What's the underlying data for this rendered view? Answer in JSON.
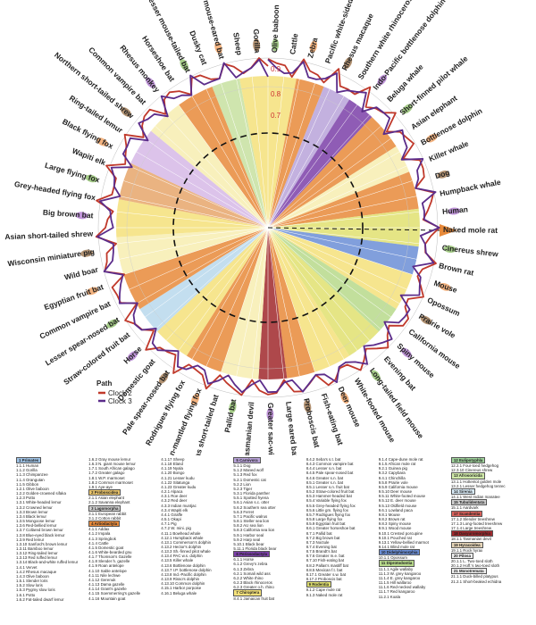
{
  "radial_labels": [
    "0.9",
    "0.8",
    "0.7"
  ],
  "legend": {
    "title": "Path",
    "items": [
      {
        "label": "Clock 2",
        "color": "#c0392b"
      },
      {
        "label": "Clock 3",
        "color": "#5b2c8a"
      }
    ]
  },
  "species_labels": [
    "Olive baboon",
    "Cattle",
    "Zebra",
    "Pacific white-sided dolphin",
    "Rhesus macaque",
    "Southern white rhinoceros",
    "Indo-Pacific bottlenose dolphin",
    "Beluga whale",
    "Short-finned pilot whale",
    "Asian elephant",
    "Bottlenose dolphin",
    "Killer whale",
    "Dog",
    "Humpback whale",
    "Human",
    "Naked mole rat",
    "Cinereus shrew",
    "Brown rat",
    "Mouse",
    "Opossum",
    "Prairie vole",
    "California mouse",
    "Spiny mouse",
    "Evening bat",
    "Long-tailed field mouse",
    "White-footed mouse",
    "Deer mouse",
    "Fish-eating bat",
    "Proboscis bat",
    "Large eared bat",
    "Greater sac-winged bat",
    "Tasmanian devil",
    "Pallid bat",
    "Sebas short-tailed bat",
    "Little golden-mantled flying fox",
    "Rodrigues flying fox",
    "Pale spear-nosed bat",
    "Domestic goat",
    "Horse",
    "Straw-colored fruit bat",
    "Lesser spear-nosed bat",
    "Common vampire bat",
    "Egyptian fruit bat",
    "Wild boar",
    "Wisconsin miniature pig",
    "Asian short-tailed shrew",
    "Big brown bat",
    "Grey-headed flying fox",
    "Large flying fox",
    "Wapiti elk",
    "Black flying fox",
    "Ring-tailed lemur",
    "Northern short-tailed shrew",
    "Common vampire bat",
    "Rhesus monkey",
    "Horseshoe bat",
    "Lesser mouse-tailed bat",
    "Dusky cat",
    "Greater mouse-eared bat",
    "Sheep",
    "Gorilla"
  ],
  "key_columns": [
    [
      {
        "t": "1 Primates",
        "h": "#9fc3e6"
      },
      {
        "t": "1.1.1 Human"
      },
      {
        "t": "1.1.2 Gorilla"
      },
      {
        "t": "1.1.3 Chimpanzee"
      },
      {
        "t": "1.1.4 Orangutan"
      },
      {
        "t": "1.1.5 Gibbon"
      },
      {
        "t": "1.2.1 Olive baboon"
      },
      {
        "t": "1.2.2 Golden-crowned sifaka"
      },
      {
        "t": "1.2.3 Potto"
      },
      {
        "t": "1.3.1 White-headed lemur"
      },
      {
        "t": "1.3.2 Crowned lemur"
      },
      {
        "t": "1.3.3 Brown lemur"
      },
      {
        "t": "1.3.4 Black lemur"
      },
      {
        "t": "1.3.5 Mongoose lemur"
      },
      {
        "t": "1.3.6 Red-bellied lemur"
      },
      {
        "t": "1.3.7 Collared brown lemur"
      },
      {
        "t": "1.3.8 Blue-eyed black lemur"
      },
      {
        "t": "1.3.9 Red lemur"
      },
      {
        "t": "1.3.10 Sanford's brown lemur"
      },
      {
        "t": "1.3.11 Bamboo lemur"
      },
      {
        "t": "1.3.12 Ring-tailed lemur"
      },
      {
        "t": "1.3.13 Red ruffed lemur"
      },
      {
        "t": "1.3.14 Black-and-white ruffed lemur"
      },
      {
        "t": "1.4.1 Vervet"
      },
      {
        "t": "1.4.2 Rhesus macaque"
      },
      {
        "t": "1.4.3 Olive baboon"
      },
      {
        "t": "1.5.1 Slender loris"
      },
      {
        "t": "1.5.2 Slow loris"
      },
      {
        "t": "1.5.3 Pygmy slow loris"
      },
      {
        "t": "1.6.1 Potto"
      },
      {
        "t": "1.6.2 Fat-tailed dwarf lemur"
      }
    ],
    [
      {
        "t": "1.6.2 Gray mouse lemur"
      },
      {
        "t": "1.6.3 N. giant mouse lemur"
      },
      {
        "t": "1.7.1 South African galago"
      },
      {
        "t": "1.7.2 Greater galago"
      },
      {
        "t": "1.8.1 W.P. marmoset"
      },
      {
        "t": "1.8.2 Common marmoset"
      },
      {
        "t": "1.9.1 Aye-aye"
      },
      {
        "t": "2 Proboscidea",
        "h": "#e8c36a"
      },
      {
        "t": "2.1.1 Asian elephant"
      },
      {
        "t": "2.1.2 Savanna elephant"
      },
      {
        "t": "3 Lagomorpha",
        "h": "#cfcfcf"
      },
      {
        "t": "3.1.1 European rabbit"
      },
      {
        "t": "3.1.2 Cotton rabbit"
      },
      {
        "t": "4 Artiodactyla",
        "h": "#e88a3a"
      },
      {
        "t": "4.1.1 Addax"
      },
      {
        "t": "4.1.2 Impala"
      },
      {
        "t": "4.1.3 Springbok"
      },
      {
        "t": "4.1.4 Cattle"
      },
      {
        "t": "4.1.5 Domestic goat"
      },
      {
        "t": "4.1.6 White-bearded gnu"
      },
      {
        "t": "4.1.7 Thomson's Gazelle"
      },
      {
        "t": "4.1.8 Slender h. gazelle"
      },
      {
        "t": "4.1.9 Roan antelope"
      },
      {
        "t": "4.1.10 Sable antelope"
      },
      {
        "t": "4.1.11 Nile lechwe"
      },
      {
        "t": "4.1.12 Gerenuk"
      },
      {
        "t": "4.1.13 Dama gazelle"
      },
      {
        "t": "4.1.14 Grant's gazelle"
      },
      {
        "t": "4.1.15 Soemmerring's gazelle"
      },
      {
        "t": "4.1.16 Mountain goat"
      }
    ],
    [
      {
        "t": "4.1.17 Sheep"
      },
      {
        "t": "4.1.18 Eland"
      },
      {
        "t": "4.1.19 Nyala"
      },
      {
        "t": "4.1.20 Bongo"
      },
      {
        "t": "4.1.21 Lesser kudu"
      },
      {
        "t": "4.1.22 Sitatunga"
      },
      {
        "t": "4.1.23 Greater kudu"
      },
      {
        "t": "4.2.1 Alpaca"
      },
      {
        "t": "4.3.1 Roe deer"
      },
      {
        "t": "4.3.2 Red deer"
      },
      {
        "t": "4.3.3 Indian muntjac"
      },
      {
        "t": "4.3.4 Wapiti elk"
      },
      {
        "t": "4.4.1 Giraffe"
      },
      {
        "t": "4.5.1 Okapi"
      },
      {
        "t": "4.7.1 Pig"
      },
      {
        "t": "4.7.2 W. mini. pig"
      },
      {
        "t": "4.11.1 Bowhead whale"
      },
      {
        "t": "4.12.1 Humpback whale"
      },
      {
        "t": "4.13.1 Commerson's dolphin"
      },
      {
        "t": "4.13.2 Hector's dolphin"
      },
      {
        "t": "4.13.3 Sh.-finned pilot whale"
      },
      {
        "t": "4.13.4 PAC w.s. dolphin"
      },
      {
        "t": "4.13.5 Killer whale"
      },
      {
        "t": "4.13.6 Bottlenose dolphin"
      },
      {
        "t": "4.13.7 I.P. bottlenose dolphin"
      },
      {
        "t": "4.13.8 Ind.-Pacific dolphin"
      },
      {
        "t": "4.13.9 Risso's dolphin"
      },
      {
        "t": "4.13.10 Common dolphin"
      },
      {
        "t": "4.15.1 Harbor porpoise"
      },
      {
        "t": "4.16.1 Beluga whale"
      }
    ],
    [
      {
        "t": "5 Carnivora",
        "h": "#b9a3d9"
      },
      {
        "t": "5.1.1 Dog"
      },
      {
        "t": "5.1.2 Maned wolf"
      },
      {
        "t": "5.1.3 Red fox"
      },
      {
        "t": "5.2.1 Domestic cat"
      },
      {
        "t": "5.2.2 Lion"
      },
      {
        "t": "5.2.3 Tiger"
      },
      {
        "t": "5.3.1 Florida panther"
      },
      {
        "t": "5.5.1 Spotted hyena"
      },
      {
        "t": "5.6.1 Asian s.c. otter"
      },
      {
        "t": "5.6.2 Southern sea otter"
      },
      {
        "t": "5.6.3 Ferret"
      },
      {
        "t": "5.7.1 Pacific walrus"
      },
      {
        "t": "5.8.1 Steller sea lion"
      },
      {
        "t": "5.8.2 AU sea lion"
      },
      {
        "t": "5.8.3 California sea lion"
      },
      {
        "t": "5.9.1 Harbor seal"
      },
      {
        "t": "5.9.2 Harp seal"
      },
      {
        "t": "5.10.1 Black bear"
      },
      {
        "t": "5.11.1 Florida black bear"
      },
      {
        "t": "6 Perissodactyla",
        "h": "#7b3fa8"
      },
      {
        "t": "6.1.1 Horse"
      },
      {
        "t": "6.1.2 Grevy's zebra"
      },
      {
        "t": "6.1.3 Zebra"
      },
      {
        "t": "6.2.1 Somali wild ass"
      },
      {
        "t": "6.2.2 White rhino"
      },
      {
        "t": "6.2.3 Black rhinoceros"
      },
      {
        "t": "6.2.3 Greater o.h. rhino"
      },
      {
        "t": "7 Chiroptera",
        "h": "#f4e17a"
      },
      {
        "t": "8.4.1 Jamaican fruit bat"
      }
    ],
    [
      {
        "t": "8.4.2 Seba's s.t. bat"
      },
      {
        "t": "8.4.3 Common vampire bat"
      },
      {
        "t": "8.4.4 Lesser s.n. bat"
      },
      {
        "t": "8.4.5 Pale spear-nosed bat"
      },
      {
        "t": "8.4.6 Greater s.n. bat"
      },
      {
        "t": "8.5.1 Greater s.n. bat"
      },
      {
        "t": "8.5.1 Lesser s.n. fruit bat"
      },
      {
        "t": "8.5.2 Straw-colored fruit bat"
      },
      {
        "t": "8.5.3 Hammer-headed bat"
      },
      {
        "t": "8.5.4 Variable flying fox"
      },
      {
        "t": "8.5.5 Grey-headed flying fox"
      },
      {
        "t": "8.5.6 Little gm. flying fox"
      },
      {
        "t": "8.5.7 Rodrigues flying fox"
      },
      {
        "t": "8.5.8 Large flying fox"
      },
      {
        "t": "8.5.9 Egyptian fruit bat"
      },
      {
        "t": "8.6.1 Greater horseshoe bat"
      },
      {
        "t": "8.7.1 Pallid bat"
      },
      {
        "t": "8.7.2 Big brown bat"
      },
      {
        "t": "8.7.3 Noctule"
      },
      {
        "t": "8.7.4 Evening bat"
      },
      {
        "t": "8.7.5 Brandt's bat"
      },
      {
        "t": "8.7.6 Greater m.e. bat"
      },
      {
        "t": "8.7.10 Fish-eating bat"
      },
      {
        "t": "8.8.2 Pallas's mastiff bat"
      },
      {
        "t": "8.8.5 Mexican f.t. bat"
      },
      {
        "t": "8.17.1 Greater s.w. bat"
      },
      {
        "t": "8.17.2 Proboscis bat"
      },
      {
        "t": "9 Rodentia",
        "h": "#e0e070"
      },
      {
        "t": "9.1.2 Cape mole rat"
      },
      {
        "t": "9.1.3 Naked mole rat"
      }
    ],
    [
      {
        "t": "9.1.4 Cape-dune mole rat"
      },
      {
        "t": "9.1.5 African mole rat"
      },
      {
        "t": "9.2.1 Guinea pig"
      },
      {
        "t": "9.3.2 Capybara"
      },
      {
        "t": "9.4.1 Chinchilla"
      },
      {
        "t": "9.5.8 Prairie vole"
      },
      {
        "t": "9.5.9 California mouse"
      },
      {
        "t": "9.5.10 Deer mouse"
      },
      {
        "t": "9.5.11 White-footed mouse"
      },
      {
        "t": "9.5.12 E. deer mouse"
      },
      {
        "t": "9.5.13 Oldfield mouse"
      },
      {
        "t": "9.6.1 Lowland paca"
      },
      {
        "t": "9.8.1 Mouse"
      },
      {
        "t": "9.8.2 Brown rat"
      },
      {
        "t": "9.8.3 Spiny mouse"
      },
      {
        "t": "9.9.1 Wood mouse"
      },
      {
        "t": "9.10.1 Crested porcupine"
      },
      {
        "t": "9.10.1 Pouched rat"
      },
      {
        "t": "9.13.1 Yellow-bellied marmot"
      },
      {
        "t": "9.14.1 Blind mole rat"
      },
      {
        "t": "10 Didelphimorphia",
        "h": "#6b8ed6"
      },
      {
        "t": "10.1.1 Opossum"
      },
      {
        "t": "11 Diprotodontia",
        "h": "#b7d98b"
      },
      {
        "t": "11.1.1 Agile wallaby"
      },
      {
        "t": "11.1.3 W. grey kangaroo"
      },
      {
        "t": "11.1.4 E. grey kangaroo"
      },
      {
        "t": "11.1.5 Hill wallaroo"
      },
      {
        "t": "11.1.6 Red-necked wallaby"
      },
      {
        "t": "11.1.7 Red kangaroo"
      },
      {
        "t": "11.2.1 Koala"
      }
    ],
    [
      {
        "t": "12 Eulipotyphla",
        "h": "#9fd39b"
      },
      {
        "t": "12.2.1 Four-toed hedgehog"
      },
      {
        "t": "12.3.10 Cinereus shrew"
      },
      {
        "t": "13 Afrosoricida",
        "h": "#cfe8a8"
      },
      {
        "t": "13.1.1 Hottentot golden mole"
      },
      {
        "t": "13.2.1 Lesser hedgehog tenrec"
      },
      {
        "t": "14 Sirenia",
        "h": "#d7e9f5"
      },
      {
        "t": "14.1.1 West Indian manatee"
      },
      {
        "t": "15 Tubulidentata",
        "h": "#cfcfcf"
      },
      {
        "t": "15.1.1 Aardvark"
      },
      {
        "t": "17 Scandentia",
        "h": "#d9605a"
      },
      {
        "t": "17.1.2 Slender treeshrew"
      },
      {
        "t": "17.1.3 Long-footed treeshrew"
      },
      {
        "t": "17.1.4 Large treeshrew"
      },
      {
        "t": "18 Dasyuromorphia",
        "h": "#a0282c"
      },
      {
        "t": "18.1.1 Tasmanian devil"
      },
      {
        "t": "19 Hyracoidea",
        "h": "#e6d5b8"
      },
      {
        "t": "19.1.1 Rock hyrax"
      },
      {
        "t": "20 Pilosa",
        "h": "#eeeeee"
      },
      {
        "t": "20.1.1 L. Two-toed sloth"
      },
      {
        "t": "20.1.2 Hoff.'s two-toed sloth"
      },
      {
        "t": "21 Monotremata",
        "h": "#eeeeee"
      },
      {
        "t": "21.1.1 Duck-billed platypus"
      },
      {
        "t": "21.2.1 Short-beaked echidna"
      }
    ]
  ]
}
